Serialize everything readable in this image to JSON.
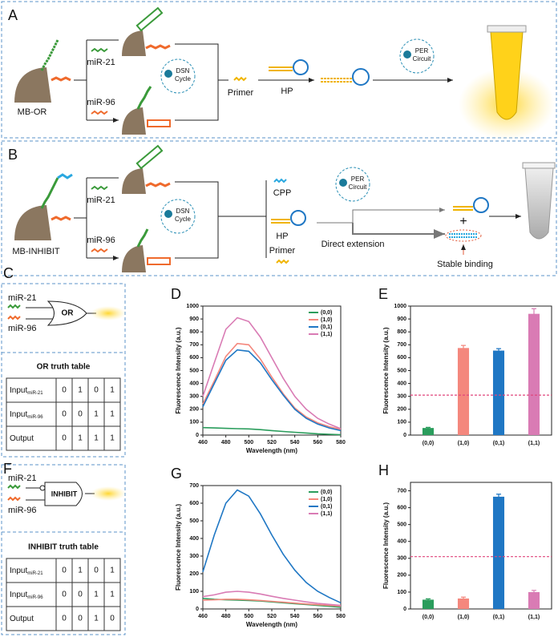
{
  "panel_a": {
    "label": "A",
    "bead": "MB-OR",
    "target1": "miR-21",
    "target2": "miR-96",
    "dsn": [
      "DSN",
      "Cycle"
    ],
    "primer": "Primer",
    "hp": "HP",
    "per": [
      "PER",
      "Circuit"
    ]
  },
  "panel_b": {
    "label": "B",
    "bead": "MB-INHIBIT",
    "target1": "miR-21",
    "target2": "miR-96",
    "dsn": [
      "DSN",
      "Cycle"
    ],
    "cpp": "CPP",
    "hp": "HP",
    "primer": "Primer",
    "per": [
      "PER",
      "Circuit"
    ],
    "plus": "+",
    "direct": "Direct extension",
    "stable": "Stable binding"
  },
  "panel_c": {
    "label": "C",
    "input1": "miR-21",
    "input2": "miR-96",
    "gate": "OR",
    "table_title": "OR truth table",
    "rows": [
      {
        "label": "Input",
        "sub": "miR-21",
        "values": [
          0,
          1,
          0,
          1
        ]
      },
      {
        "label": "Input",
        "sub": "miR-96",
        "values": [
          0,
          0,
          1,
          1
        ]
      },
      {
        "label": "Output",
        "values": [
          0,
          1,
          1,
          1
        ]
      }
    ]
  },
  "panel_f": {
    "label": "F",
    "input1": "miR-21",
    "input2": "miR-96",
    "gate": "INHIBIT",
    "table_title": "INHIBIT truth table",
    "rows": [
      {
        "label": "Input",
        "sub": "miR-21",
        "values": [
          0,
          1,
          0,
          1
        ]
      },
      {
        "label": "Input",
        "sub": "miR-96",
        "values": [
          0,
          0,
          1,
          1
        ]
      },
      {
        "label": "Output",
        "values": [
          0,
          0,
          1,
          0
        ]
      }
    ]
  },
  "chart_data": [
    {
      "type": "line",
      "label": "D",
      "x_label": "Wavelength (nm)",
      "y_label": "Fluorescence Intensity (a.u.)",
      "x": [
        460,
        470,
        480,
        490,
        500,
        510,
        520,
        530,
        540,
        550,
        560,
        570,
        580
      ],
      "xlim": [
        460,
        580
      ],
      "xticks": [
        460,
        480,
        500,
        520,
        540,
        560,
        580
      ],
      "ylim": [
        0,
        1000
      ],
      "yticks": [
        0,
        100,
        200,
        300,
        400,
        500,
        600,
        700,
        800,
        900,
        1000
      ],
      "legend": "upper right",
      "series": [
        {
          "name": "(0,0)",
          "color": "#2a9d5c",
          "values": [
            58,
            55,
            52,
            50,
            48,
            42,
            35,
            28,
            22,
            16,
            10,
            6,
            3
          ]
        },
        {
          "name": "(1,0)",
          "color": "#f4877d",
          "values": [
            240,
            420,
            610,
            710,
            700,
            590,
            450,
            320,
            210,
            140,
            95,
            65,
            45
          ]
        },
        {
          "name": "(0,1)",
          "color": "#1f77c4",
          "values": [
            220,
            400,
            580,
            660,
            650,
            560,
            430,
            310,
            200,
            130,
            85,
            55,
            35
          ]
        },
        {
          "name": "(1,1)",
          "color": "#d97bb4",
          "values": [
            300,
            560,
            820,
            910,
            880,
            760,
            600,
            440,
            300,
            200,
            130,
            85,
            50
          ]
        }
      ]
    },
    {
      "type": "bar",
      "label": "E",
      "y_label": "Fluorescence Intensity (a.u.)",
      "categories": [
        "(0,0)",
        "(1,0)",
        "(0,1)",
        "(1,1)"
      ],
      "values": [
        55,
        675,
        655,
        940
      ],
      "errors": [
        5,
        20,
        15,
        40
      ],
      "colors": [
        "#2a9d5c",
        "#f4877d",
        "#1f77c4",
        "#d97bb4"
      ],
      "threshold": 310,
      "ylim": [
        0,
        1000
      ],
      "yticks": [
        0,
        100,
        200,
        300,
        400,
        500,
        600,
        700,
        800,
        900,
        1000
      ]
    },
    {
      "type": "line",
      "label": "G",
      "x_label": "Wavelength (nm)",
      "y_label": "Fluorescence Intensity (a.u.)",
      "x": [
        460,
        470,
        480,
        490,
        500,
        510,
        520,
        530,
        540,
        550,
        560,
        570,
        580
      ],
      "xlim": [
        460,
        580
      ],
      "xticks": [
        460,
        480,
        500,
        520,
        540,
        560,
        580
      ],
      "ylim": [
        0,
        700
      ],
      "yticks": [
        0,
        100,
        200,
        300,
        400,
        500,
        600,
        700
      ],
      "legend": "upper right",
      "series": [
        {
          "name": "(0,0)",
          "color": "#2a9d5c",
          "values": [
            60,
            55,
            52,
            50,
            48,
            45,
            40,
            35,
            30,
            25,
            20,
            15,
            10
          ]
        },
        {
          "name": "(1,0)",
          "color": "#f4877d",
          "values": [
            50,
            52,
            55,
            55,
            52,
            48,
            43,
            38,
            33,
            28,
            24,
            20,
            16
          ]
        },
        {
          "name": "(0,1)",
          "color": "#1f77c4",
          "values": [
            210,
            420,
            600,
            675,
            640,
            540,
            420,
            310,
            220,
            150,
            100,
            65,
            35
          ]
        },
        {
          "name": "(1,1)",
          "color": "#d97bb4",
          "values": [
            70,
            80,
            95,
            100,
            95,
            85,
            72,
            60,
            50,
            40,
            32,
            26,
            20
          ]
        }
      ]
    },
    {
      "type": "bar",
      "label": "H",
      "y_label": "Fluorescence Intensity (a.u.)",
      "categories": [
        "(0,0)",
        "(1,0)",
        "(0,1)",
        "(1,1)"
      ],
      "values": [
        55,
        62,
        665,
        100
      ],
      "errors": [
        5,
        8,
        15,
        10
      ],
      "colors": [
        "#2a9d5c",
        "#f4877d",
        "#1f77c4",
        "#d97bb4"
      ],
      "threshold": 310,
      "ylim": [
        0,
        750
      ],
      "yticks": [
        0,
        100,
        200,
        300,
        400,
        500,
        600,
        700
      ]
    }
  ]
}
